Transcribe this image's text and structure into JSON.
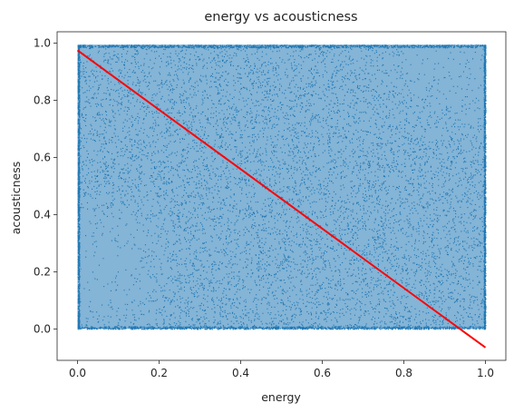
{
  "chart_data": {
    "type": "scatter",
    "title": "energy vs acousticness",
    "xlabel": "energy",
    "ylabel": "acousticness",
    "xlim": [
      -0.05,
      1.05
    ],
    "ylim": [
      -0.11,
      1.04
    ],
    "xticks": [
      0.0,
      0.2,
      0.4,
      0.6,
      0.8,
      1.0
    ],
    "xtick_labels": [
      "0.0",
      "0.2",
      "0.4",
      "0.6",
      "0.8",
      "1.0"
    ],
    "yticks": [
      0.0,
      0.2,
      0.4,
      0.6,
      0.8,
      1.0
    ],
    "ytick_labels": [
      "0.0",
      "0.2",
      "0.4",
      "0.6",
      "0.8",
      "1.0"
    ],
    "grid": false,
    "series": [
      {
        "kind": "points",
        "color": "#1f77b4",
        "description_region": {
          "x": [
            0.0,
            1.0
          ],
          "y": [
            0.0,
            0.995
          ]
        }
      },
      {
        "kind": "regression-line",
        "color": "#ff0000",
        "x": [
          0.0,
          1.0
        ],
        "y": [
          0.975,
          -0.065
        ]
      }
    ]
  }
}
